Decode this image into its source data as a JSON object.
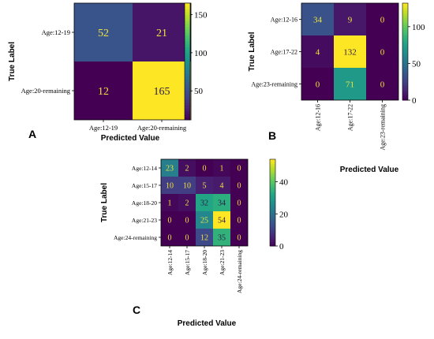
{
  "chart_data": [
    {
      "type": "heatmap",
      "panel_label": "A",
      "xlabel": "Predicted Value",
      "ylabel": "True Label",
      "x_categories": [
        "Age:12-19",
        "Age:20-remaining"
      ],
      "y_categories": [
        "Age:12-19",
        "Age:20-remaining"
      ],
      "values": [
        [
          52,
          21
        ],
        [
          12,
          165
        ]
      ],
      "colorbar": {
        "colormap": "viridis",
        "vmin": 12,
        "vmax": 165,
        "ticks": [
          50,
          100,
          150
        ]
      }
    },
    {
      "type": "heatmap",
      "panel_label": "B",
      "xlabel": "Predicted Value",
      "ylabel": "True Label",
      "x_categories": [
        "Age:12-16",
        "Age:17-22",
        "Age:23-remaining"
      ],
      "y_categories": [
        "Age:12-16",
        "Age:17-22",
        "Age:23-remaining"
      ],
      "values": [
        [
          34,
          9,
          0
        ],
        [
          4,
          132,
          0
        ],
        [
          0,
          71,
          0
        ]
      ],
      "colorbar": {
        "colormap": "viridis",
        "vmin": 0,
        "vmax": 132,
        "ticks": [
          0,
          50,
          100
        ]
      }
    },
    {
      "type": "heatmap",
      "panel_label": "C",
      "xlabel": "Predicted Value",
      "ylabel": "True Label",
      "x_categories": [
        "Age:12-14",
        "Age:15-17",
        "Age:18-20",
        "Age:21-23",
        "Age:24-remaining"
      ],
      "y_categories": [
        "Age:12-14",
        "Age:15-17",
        "Age:18-20",
        "Age:21-23",
        "Age:24-remaining"
      ],
      "values": [
        [
          23,
          2,
          0,
          1,
          0
        ],
        [
          10,
          10,
          5,
          4,
          0
        ],
        [
          1,
          2,
          32,
          34,
          0
        ],
        [
          0,
          0,
          25,
          54,
          0
        ],
        [
          0,
          0,
          12,
          35,
          0
        ]
      ],
      "colorbar": {
        "colormap": "viridis",
        "vmin": 0,
        "vmax": 54,
        "ticks": [
          0,
          20,
          40
        ]
      }
    }
  ]
}
